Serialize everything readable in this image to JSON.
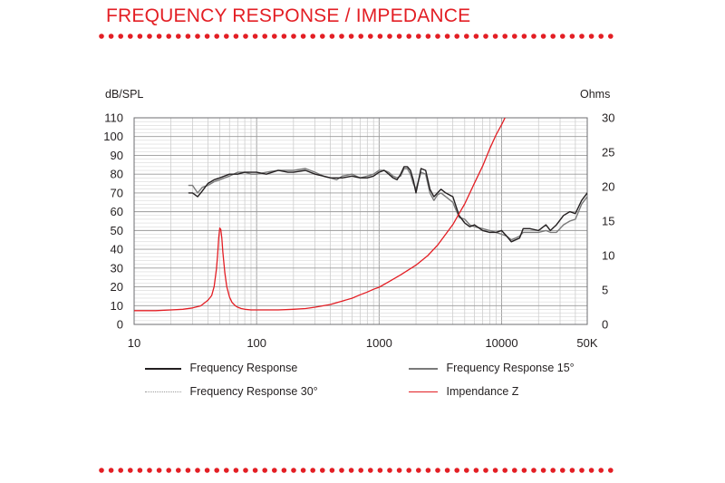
{
  "header": {
    "title": "FREQUENCY RESPONSE / IMPEDANCE",
    "accent_color": "#e31e24"
  },
  "chart_data": {
    "type": "line",
    "title": "",
    "xlabel": "",
    "ylabel_left": "dB/SPL",
    "ylabel_right": "Ohms",
    "x_scale": "log",
    "xlim": [
      10,
      50000
    ],
    "ylim_left": [
      0,
      110
    ],
    "ylim_right": [
      0,
      30
    ],
    "grid": true,
    "legend_position": "bottom",
    "x_ticks": [
      {
        "value": 10,
        "label": "10"
      },
      {
        "value": 100,
        "label": "100"
      },
      {
        "value": 1000,
        "label": "1000"
      },
      {
        "value": 10000,
        "label": "10000"
      },
      {
        "value": 50000,
        "label": "50K"
      }
    ],
    "y_ticks_left": [
      0,
      10,
      20,
      30,
      40,
      50,
      60,
      70,
      80,
      90,
      100,
      110
    ],
    "y_ticks_right": [
      0,
      5,
      10,
      15,
      20,
      25,
      30
    ],
    "series": [
      {
        "name": "Frequency Response",
        "axis": "left",
        "color": "#231f20",
        "dash": "none",
        "x": [
          28,
          30,
          33,
          36,
          40,
          45,
          50,
          60,
          70,
          80,
          90,
          100,
          120,
          150,
          180,
          200,
          250,
          300,
          350,
          400,
          450,
          500,
          600,
          700,
          800,
          900,
          1000,
          1100,
          1200,
          1300,
          1400,
          1500,
          1600,
          1700,
          1800,
          1900,
          2000,
          2200,
          2400,
          2600,
          2800,
          3000,
          3200,
          3500,
          4000,
          4500,
          5000,
          5500,
          6000,
          7000,
          8000,
          9000,
          10000,
          11000,
          12000,
          13000,
          14000,
          15000,
          17000,
          20000,
          23000,
          25000,
          28000,
          32000,
          36000,
          40000,
          45000,
          50000
        ],
        "y": [
          70,
          70,
          68,
          71,
          75,
          77,
          78,
          80,
          80,
          81,
          81,
          81,
          80,
          82,
          81,
          81,
          82,
          80,
          79,
          78,
          78,
          78,
          79,
          78,
          78,
          79,
          81,
          82,
          80,
          78,
          77,
          80,
          84,
          84,
          82,
          77,
          70,
          83,
          82,
          72,
          68,
          70,
          72,
          70,
          68,
          58,
          54,
          52,
          53,
          50,
          49,
          49,
          50,
          47,
          44,
          45,
          46,
          51,
          51,
          50,
          53,
          50,
          53,
          58,
          60,
          59,
          66,
          70
        ]
      },
      {
        "name": "Frequency Response 15°",
        "axis": "left",
        "color": "#7a7a7a",
        "dash": "none",
        "x": [
          28,
          30,
          33,
          36,
          40,
          45,
          50,
          60,
          70,
          80,
          90,
          100,
          120,
          150,
          180,
          200,
          250,
          300,
          350,
          400,
          450,
          500,
          600,
          700,
          800,
          900,
          1000,
          1100,
          1200,
          1300,
          1400,
          1500,
          1600,
          1700,
          1800,
          1900,
          2000,
          2200,
          2400,
          2600,
          2800,
          3000,
          3200,
          3500,
          4000,
          4500,
          5000,
          5500,
          6000,
          7000,
          8000,
          9000,
          10000,
          11000,
          12000,
          13000,
          14000,
          15000,
          17000,
          20000,
          23000,
          25000,
          28000,
          32000,
          36000,
          40000,
          45000,
          50000
        ],
        "y": [
          74,
          74,
          70,
          73,
          74,
          76,
          77,
          79,
          81,
          81,
          80,
          80,
          81,
          82,
          82,
          82,
          83,
          81,
          79,
          78,
          77,
          79,
          80,
          78,
          79,
          80,
          82,
          82,
          81,
          79,
          78,
          79,
          83,
          83,
          80,
          75,
          72,
          81,
          80,
          70,
          66,
          69,
          70,
          68,
          65,
          57,
          56,
          53,
          52,
          51,
          50,
          49,
          48,
          47,
          45,
          46,
          47,
          49,
          49,
          49,
          50,
          49,
          49,
          53,
          55,
          56,
          64,
          68
        ]
      },
      {
        "name": "Frequency Response 30°",
        "axis": "left",
        "color": "#b0b0b0",
        "dash": "1,6",
        "x": [],
        "y": []
      },
      {
        "name": "Impendance Z",
        "axis": "right",
        "color": "#e31e24",
        "dash": "none",
        "x": [
          10,
          15,
          20,
          25,
          30,
          35,
          40,
          43,
          45,
          47,
          48,
          49,
          50,
          51,
          52,
          53,
          55,
          57,
          60,
          63,
          67,
          70,
          75,
          80,
          90,
          100,
          120,
          150,
          200,
          250,
          300,
          400,
          500,
          600,
          700,
          800,
          900,
          1000,
          1200,
          1500,
          2000,
          2500,
          3000,
          4000,
          5000,
          6000,
          7000,
          8000,
          9000,
          10000,
          11000,
          12000
        ],
        "y": [
          2,
          2,
          2.1,
          2.2,
          2.4,
          2.7,
          3.5,
          4.2,
          5.5,
          8,
          10,
          12.5,
          14,
          13.8,
          12.5,
          10.5,
          7.5,
          5.5,
          4,
          3.2,
          2.7,
          2.5,
          2.3,
          2.2,
          2.1,
          2.1,
          2.1,
          2.1,
          2.2,
          2.3,
          2.5,
          2.9,
          3.4,
          3.8,
          4.3,
          4.7,
          5.1,
          5.4,
          6.2,
          7.2,
          8.6,
          10,
          11.5,
          14.5,
          17.5,
          20.5,
          23,
          25.5,
          27.5,
          29,
          30.5,
          31
        ]
      }
    ]
  }
}
